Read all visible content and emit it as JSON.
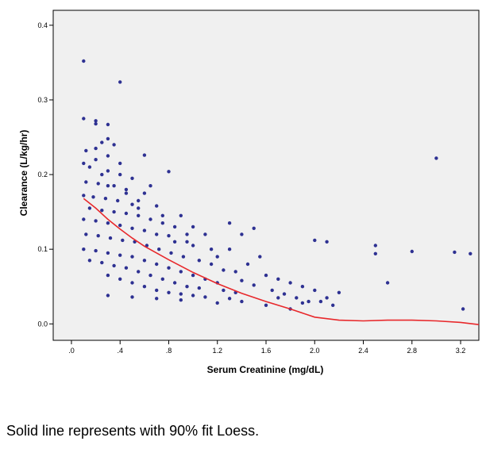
{
  "chart_data": {
    "type": "scatter",
    "title": "",
    "xlabel": "Serum Creatinine (mg/dL)",
    "ylabel": "Clearance (L/kg/hr)",
    "xlim": [
      -0.15,
      3.35
    ],
    "ylim": [
      -0.022,
      0.42
    ],
    "x_ticks": [
      0.0,
      0.4,
      0.8,
      1.2,
      1.6,
      2.0,
      2.4,
      2.8,
      3.2
    ],
    "x_tick_labels": [
      ".0",
      ".4",
      ".8",
      "1.2",
      "1.6",
      "2.0",
      "2.4",
      "2.8",
      "3.2"
    ],
    "y_ticks": [
      0.0,
      0.1,
      0.2,
      0.3,
      0.4
    ],
    "y_tick_labels": [
      "0.0",
      "0.1",
      "0.2",
      "0.3",
      "0.4"
    ],
    "grid": false,
    "point_color": "#2e3192",
    "fit_color": "#e8282b",
    "plot_background": "#f0f0f0",
    "points": [
      [
        0.1,
        0.352
      ],
      [
        0.4,
        0.324
      ],
      [
        0.1,
        0.275
      ],
      [
        0.2,
        0.272
      ],
      [
        0.2,
        0.268
      ],
      [
        0.3,
        0.267
      ],
      [
        0.6,
        0.226
      ],
      [
        0.8,
        0.204
      ],
      [
        0.3,
        0.248
      ],
      [
        0.25,
        0.243
      ],
      [
        0.12,
        0.232
      ],
      [
        0.35,
        0.24
      ],
      [
        0.2,
        0.22
      ],
      [
        0.1,
        0.215
      ],
      [
        0.15,
        0.21
      ],
      [
        0.3,
        0.205
      ],
      [
        0.4,
        0.2
      ],
      [
        0.5,
        0.195
      ],
      [
        0.12,
        0.19
      ],
      [
        0.22,
        0.188
      ],
      [
        0.3,
        0.185
      ],
      [
        0.45,
        0.18
      ],
      [
        0.6,
        0.175
      ],
      [
        0.1,
        0.172
      ],
      [
        0.18,
        0.17
      ],
      [
        0.28,
        0.168
      ],
      [
        0.38,
        0.165
      ],
      [
        0.5,
        0.16
      ],
      [
        0.7,
        0.158
      ],
      [
        0.9,
        0.145
      ],
      [
        0.15,
        0.155
      ],
      [
        0.25,
        0.152
      ],
      [
        0.35,
        0.15
      ],
      [
        0.45,
        0.148
      ],
      [
        0.55,
        0.145
      ],
      [
        0.65,
        0.14
      ],
      [
        0.75,
        0.135
      ],
      [
        0.85,
        0.13
      ],
      [
        0.1,
        0.14
      ],
      [
        0.2,
        0.138
      ],
      [
        0.3,
        0.135
      ],
      [
        0.4,
        0.132
      ],
      [
        0.5,
        0.128
      ],
      [
        0.6,
        0.125
      ],
      [
        0.7,
        0.12
      ],
      [
        0.8,
        0.118
      ],
      [
        0.95,
        0.11
      ],
      [
        1.0,
        0.105
      ],
      [
        0.12,
        0.12
      ],
      [
        0.22,
        0.118
      ],
      [
        0.32,
        0.115
      ],
      [
        0.42,
        0.112
      ],
      [
        0.52,
        0.11
      ],
      [
        0.62,
        0.105
      ],
      [
        0.72,
        0.1
      ],
      [
        0.82,
        0.095
      ],
      [
        0.92,
        0.09
      ],
      [
        1.05,
        0.085
      ],
      [
        1.15,
        0.08
      ],
      [
        0.1,
        0.1
      ],
      [
        0.2,
        0.098
      ],
      [
        0.3,
        0.095
      ],
      [
        0.4,
        0.092
      ],
      [
        0.5,
        0.09
      ],
      [
        0.6,
        0.085
      ],
      [
        0.7,
        0.08
      ],
      [
        0.8,
        0.075
      ],
      [
        0.9,
        0.07
      ],
      [
        1.0,
        0.065
      ],
      [
        1.1,
        0.06
      ],
      [
        1.2,
        0.055
      ],
      [
        0.15,
        0.085
      ],
      [
        0.25,
        0.082
      ],
      [
        0.35,
        0.078
      ],
      [
        0.45,
        0.075
      ],
      [
        0.55,
        0.07
      ],
      [
        0.65,
        0.065
      ],
      [
        0.75,
        0.06
      ],
      [
        0.85,
        0.055
      ],
      [
        0.95,
        0.05
      ],
      [
        1.05,
        0.048
      ],
      [
        1.25,
        0.045
      ],
      [
        1.35,
        0.042
      ],
      [
        0.3,
        0.065
      ],
      [
        0.4,
        0.06
      ],
      [
        0.5,
        0.055
      ],
      [
        0.6,
        0.05
      ],
      [
        0.7,
        0.045
      ],
      [
        0.8,
        0.042
      ],
      [
        0.9,
        0.04
      ],
      [
        1.0,
        0.038
      ],
      [
        1.1,
        0.036
      ],
      [
        1.3,
        0.034
      ],
      [
        1.4,
        0.03
      ],
      [
        0.3,
        0.038
      ],
      [
        0.5,
        0.036
      ],
      [
        0.7,
        0.034
      ],
      [
        0.9,
        0.032
      ],
      [
        1.2,
        0.028
      ],
      [
        1.3,
        0.1
      ],
      [
        1.4,
        0.12
      ],
      [
        1.5,
        0.128
      ],
      [
        1.3,
        0.135
      ],
      [
        1.2,
        0.09
      ],
      [
        1.45,
        0.08
      ],
      [
        1.6,
        0.065
      ],
      [
        1.7,
        0.06
      ],
      [
        1.8,
        0.055
      ],
      [
        1.9,
        0.05
      ],
      [
        2.0,
        0.045
      ],
      [
        1.65,
        0.045
      ],
      [
        1.75,
        0.04
      ],
      [
        1.85,
        0.035
      ],
      [
        1.95,
        0.03
      ],
      [
        1.6,
        0.025
      ],
      [
        1.8,
        0.02
      ],
      [
        2.05,
        0.03
      ],
      [
        2.15,
        0.025
      ],
      [
        2.2,
        0.042
      ],
      [
        2.0,
        0.112
      ],
      [
        2.1,
        0.11
      ],
      [
        2.5,
        0.105
      ],
      [
        2.5,
        0.094
      ],
      [
        2.8,
        0.097
      ],
      [
        3.0,
        0.222
      ],
      [
        3.15,
        0.096
      ],
      [
        3.28,
        0.094
      ],
      [
        2.6,
        0.055
      ],
      [
        3.22,
        0.02
      ],
      [
        1.55,
        0.09
      ],
      [
        1.35,
        0.07
      ],
      [
        1.15,
        0.1
      ],
      [
        0.95,
        0.12
      ],
      [
        0.75,
        0.145
      ],
      [
        0.55,
        0.165
      ],
      [
        0.45,
        0.175
      ],
      [
        0.35,
        0.185
      ],
      [
        0.25,
        0.2
      ],
      [
        0.2,
        0.235
      ],
      [
        0.3,
        0.225
      ],
      [
        0.4,
        0.215
      ],
      [
        1.0,
        0.13
      ],
      [
        1.1,
        0.12
      ],
      [
        1.7,
        0.035
      ],
      [
        1.9,
        0.028
      ],
      [
        2.1,
        0.035
      ],
      [
        1.5,
        0.052
      ],
      [
        1.4,
        0.058
      ],
      [
        1.25,
        0.072
      ],
      [
        0.65,
        0.185
      ],
      [
        0.55,
        0.155
      ],
      [
        0.85,
        0.11
      ]
    ],
    "loess": {
      "label": "90% fit Loess",
      "x": [
        0.1,
        0.2,
        0.3,
        0.4,
        0.5,
        0.6,
        0.8,
        1.0,
        1.2,
        1.4,
        1.6,
        1.8,
        2.0,
        2.2,
        2.4,
        2.6,
        2.8,
        3.0,
        3.2,
        3.35
      ],
      "y": [
        0.168,
        0.155,
        0.14,
        0.127,
        0.115,
        0.104,
        0.086,
        0.069,
        0.054,
        0.041,
        0.03,
        0.02,
        0.009,
        0.005,
        0.004,
        0.005,
        0.005,
        0.004,
        0.002,
        -0.001
      ]
    }
  },
  "caption": "Solid line represents with 90% fit Loess."
}
